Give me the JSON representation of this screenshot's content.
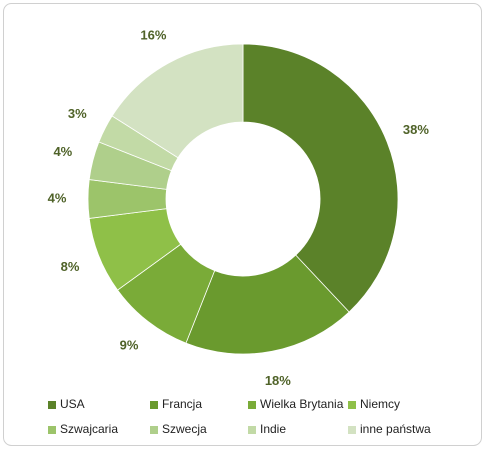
{
  "chart_data": {
    "type": "donut",
    "categories": [
      "USA",
      "Francja",
      "Wielka Brytania",
      "Niemcy",
      "Szwajcaria",
      "Szwecja",
      "Indie",
      "inne państwa"
    ],
    "values": [
      38,
      18,
      9,
      8,
      4,
      4,
      3,
      16
    ],
    "value_labels": [
      "38%",
      "18%",
      "9%",
      "8%",
      "4%",
      "4%",
      "3%",
      "16%"
    ],
    "colors": [
      "#5b8229",
      "#6a9a2e",
      "#7aab38",
      "#8fc048",
      "#9cc46a",
      "#afcf8b",
      "#c2daa6",
      "#d3e2c2"
    ],
    "legend": "bottom"
  }
}
